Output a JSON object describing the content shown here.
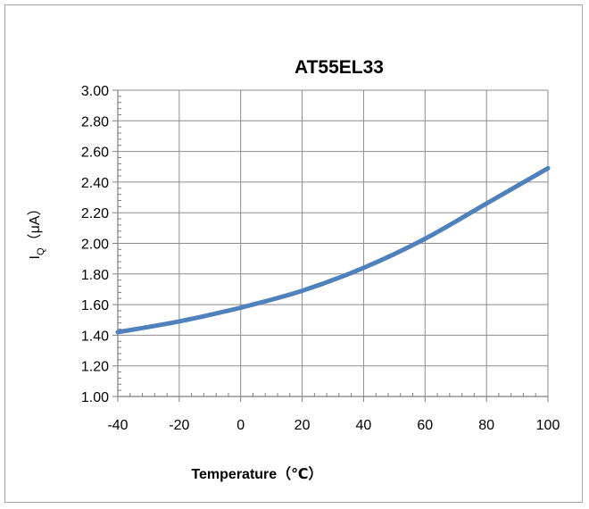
{
  "chart_data": {
    "type": "line",
    "title": "AT55EL33",
    "xlabel": "Temperature（℃）",
    "ylabel": "IQ（μA）",
    "ylabel_parts": {
      "main": "I",
      "sub": "Q",
      "unit": "（μA）"
    },
    "xlim": [
      -40,
      100
    ],
    "ylim": [
      1.0,
      3.0
    ],
    "xticks": [
      -40,
      -20,
      0,
      20,
      40,
      60,
      80,
      100
    ],
    "xtick_labels": [
      "-40",
      "-20",
      "0",
      "20",
      "40",
      "60",
      "80",
      "100"
    ],
    "yticks": [
      1.0,
      1.2,
      1.4,
      1.6,
      1.8,
      2.0,
      2.2,
      2.4,
      2.6,
      2.8,
      3.0
    ],
    "ytick_labels": [
      "1.00",
      "1.20",
      "1.40",
      "1.60",
      "1.80",
      "2.00",
      "2.20",
      "2.40",
      "2.60",
      "2.80",
      "3.00"
    ],
    "grid": true,
    "legend": "none",
    "series": [
      {
        "color": "#4f81bd",
        "x": [
          -40,
          -20,
          0,
          20,
          40,
          60,
          80,
          100
        ],
        "y": [
          1.42,
          1.49,
          1.58,
          1.69,
          1.84,
          2.03,
          2.26,
          2.49
        ]
      }
    ]
  }
}
